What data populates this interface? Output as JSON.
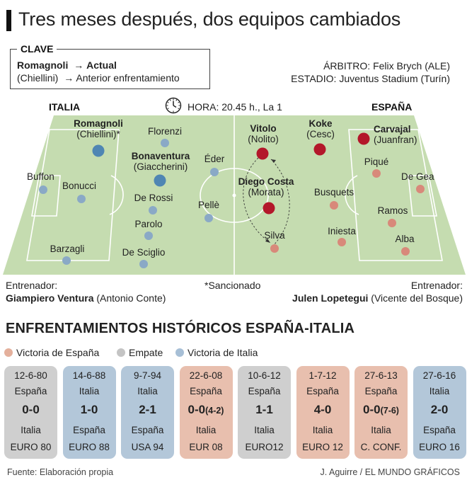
{
  "title": "Tres meses después, dos equipos cambiados",
  "key": {
    "label": "CLAVE",
    "current_name": "Romagnoli",
    "current_text": "Actual",
    "previous_name": "(Chiellini)",
    "previous_text": "Anterior enfrentamiento",
    "arrow": "→"
  },
  "match": {
    "referee": "ÁRBITRO: Felix Brych (ALE)",
    "stadium": "ESTADIO: Juventus Stadium (Turín)",
    "time": "HORA: 20.45 h., La 1"
  },
  "teams": {
    "left": "ITALIA",
    "right": "ESPAÑA"
  },
  "italy_players": {
    "romagnoli": {
      "name": "Romagnoli",
      "prev": "(Chiellini)*"
    },
    "florenzi": {
      "name": "Florenzi"
    },
    "bonaventura": {
      "name": "Bonaventura",
      "prev": "(Giaccherini)"
    },
    "eder": {
      "name": "Éder"
    },
    "buffon": {
      "name": "Buffon"
    },
    "bonucci": {
      "name": "Bonucci"
    },
    "derossi": {
      "name": "De Rossi"
    },
    "pelle": {
      "name": "Pellè"
    },
    "parolo": {
      "name": "Parolo"
    },
    "barzagli": {
      "name": "Barzagli"
    },
    "desciglio": {
      "name": "De Sciglio"
    }
  },
  "spain_players": {
    "vitolo": {
      "name": "Vitolo",
      "prev": "(Nolito)"
    },
    "koke": {
      "name": "Koke",
      "prev": "(Cesc)"
    },
    "carvajal": {
      "name": "Carvajal",
      "prev": "(Juanfran)"
    },
    "pique": {
      "name": "Piqué"
    },
    "degea": {
      "name": "De Gea"
    },
    "diegocosta": {
      "name": "Diego Costa",
      "prev": "(Morata)"
    },
    "busquets": {
      "name": "Busquets"
    },
    "ramos": {
      "name": "Ramos"
    },
    "iniesta": {
      "name": "Iniesta"
    },
    "silva": {
      "name": "Silva"
    },
    "alba": {
      "name": "Alba"
    }
  },
  "coaches": {
    "label": "Entrenador:",
    "italy_current": "Giampiero Ventura",
    "italy_prev": "(Antonio Conte)",
    "spain_current": "Julen Lopetegui",
    "spain_prev": "(Vicente del Bosque)",
    "note": "*Sancionado"
  },
  "history": {
    "title": "ENFRENTAMIENTOS HISTÓRICOS ESPAÑA-ITALIA",
    "legend": {
      "spain_win": "Victoria de España",
      "draw": "Empate",
      "italy_win": "Victoria de Italia"
    },
    "colors": {
      "spain_win": "#e8bfae",
      "draw": "#cfcfcf",
      "italy_win": "#b3c7d9",
      "spain_win_dot": "#e4b09c",
      "draw_dot": "#c4c4c4",
      "italy_win_dot": "#a7bfd6"
    },
    "matches": [
      {
        "date": "12-6-80",
        "home": "España",
        "score": "0-0",
        "pens": "",
        "away": "Italia",
        "comp": "EURO 80",
        "result": "draw"
      },
      {
        "date": "14-6-88",
        "home": "Italia",
        "score": "1-0",
        "pens": "",
        "away": "España",
        "comp": "EURO 88",
        "result": "italy_win"
      },
      {
        "date": "9-7-94",
        "home": "Italia",
        "score": "2-1",
        "pens": "",
        "away": "España",
        "comp": "USA 94",
        "result": "italy_win"
      },
      {
        "date": "22-6-08",
        "home": "España",
        "score": "0-0",
        "pens": "(4-2)",
        "away": "Italia",
        "comp": "EUR 08",
        "result": "spain_win"
      },
      {
        "date": "10-6-12",
        "home": "España",
        "score": "1-1",
        "pens": "",
        "away": "Italia",
        "comp": "EURO12",
        "result": "draw"
      },
      {
        "date": "1-7-12",
        "home": "España",
        "score": "4-0",
        "pens": "",
        "away": "Italia",
        "comp": "EURO 12",
        "result": "spain_win"
      },
      {
        "date": "27-6-13",
        "home": "España",
        "score": "0-0",
        "pens": "(7-6)",
        "away": "Italia",
        "comp": "C. CONF.",
        "result": "spain_win"
      },
      {
        "date": "27-6-16",
        "home": "Italia",
        "score": "2-0",
        "pens": "",
        "away": "España",
        "comp": "EURO 16",
        "result": "italy_win"
      }
    ]
  },
  "footer": {
    "source": "Fuente: Elaboración propia",
    "credit": "J. Aguirre / EL MUNDO GRÁFICOS"
  }
}
